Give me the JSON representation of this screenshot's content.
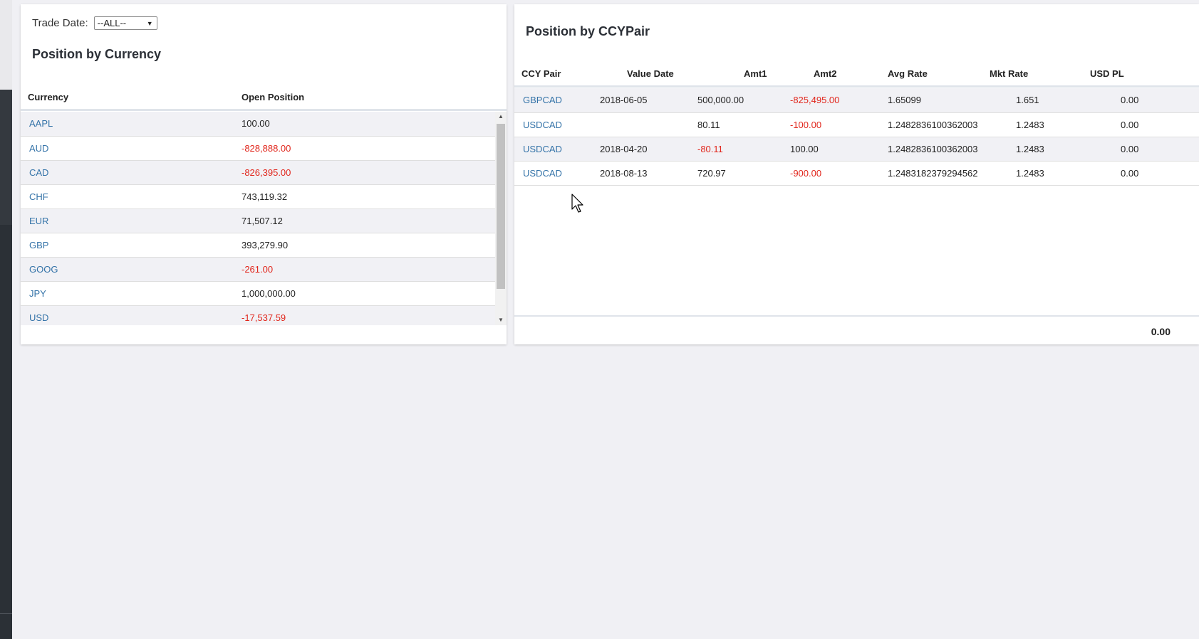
{
  "filter": {
    "label": "Trade Date:",
    "selected": "--ALL--"
  },
  "currency_panel": {
    "title": "Position by Currency",
    "columns": [
      "Currency",
      "Open Position"
    ],
    "rows": [
      {
        "currency": "AAPL",
        "position": "100.00",
        "negative": false
      },
      {
        "currency": "AUD",
        "position": "-828,888.00",
        "negative": true
      },
      {
        "currency": "CAD",
        "position": "-826,395.00",
        "negative": true
      },
      {
        "currency": "CHF",
        "position": "743,119.32",
        "negative": false
      },
      {
        "currency": "EUR",
        "position": "71,507.12",
        "negative": false
      },
      {
        "currency": "GBP",
        "position": "393,279.90",
        "negative": false
      },
      {
        "currency": "GOOG",
        "position": "-261.00",
        "negative": true
      },
      {
        "currency": "JPY",
        "position": "1,000,000.00",
        "negative": false
      },
      {
        "currency": "USD",
        "position": "-17,537.59",
        "negative": true
      }
    ]
  },
  "pair_panel": {
    "title": "Position by CCYPair",
    "columns": [
      "CCY Pair",
      "Value Date",
      "Amt1",
      "Amt2",
      "Avg Rate",
      "Mkt Rate",
      "USD PL"
    ],
    "rows": [
      {
        "pair": "GBPCAD",
        "value_date": "2018-06-05",
        "amt1": "500,000.00",
        "amt1_neg": false,
        "amt2": "-825,495.00",
        "amt2_neg": true,
        "avg_rate": "1.65099",
        "mkt_rate": "1.651",
        "usd_pl": "0.00"
      },
      {
        "pair": "USDCAD",
        "value_date": "",
        "amt1": "80.11",
        "amt1_neg": false,
        "amt2": "-100.00",
        "amt2_neg": true,
        "avg_rate": "1.2482836100362003",
        "mkt_rate": "1.2483",
        "usd_pl": "0.00"
      },
      {
        "pair": "USDCAD",
        "value_date": "2018-04-20",
        "amt1": "-80.11",
        "amt1_neg": true,
        "amt2": "100.00",
        "amt2_neg": false,
        "avg_rate": "1.2482836100362003",
        "mkt_rate": "1.2483",
        "usd_pl": "0.00"
      },
      {
        "pair": "USDCAD",
        "value_date": "2018-08-13",
        "amt1": "720.97",
        "amt1_neg": false,
        "amt2": "-900.00",
        "amt2_neg": true,
        "avg_rate": "1.2483182379294562",
        "mkt_rate": "1.2483",
        "usd_pl": "0.00"
      }
    ],
    "total_usd_pl": "0.00"
  },
  "colors": {
    "link": "#3473a8",
    "negative": "#e1261c",
    "row_alt": "#f1f1f5"
  },
  "icons": {
    "dropdown": "triangle-down",
    "cursor": "mouse-pointer"
  }
}
